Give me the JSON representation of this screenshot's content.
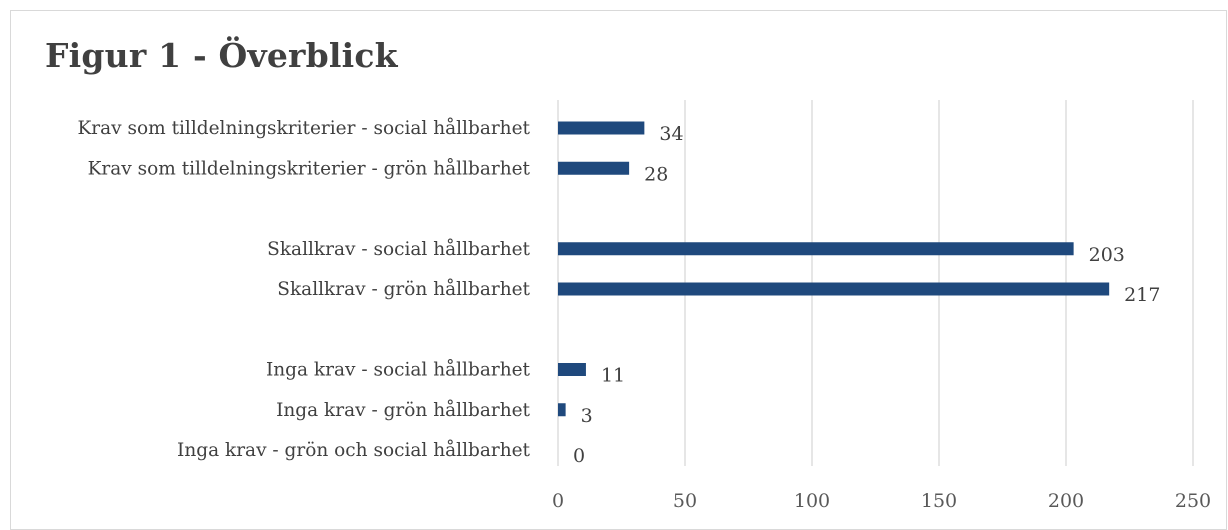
{
  "chart_data": {
    "type": "bar",
    "orientation": "horizontal",
    "title": "Figur 1 - Överblick",
    "categories": [
      "Krav som tilldelningskriterier - social hållbarhet",
      "Krav som tilldelningskriterier - grön hållbarhet",
      "",
      "Skallkrav - social hållbarhet",
      "Skallkrav - grön hållbarhet",
      "",
      "Inga krav - social hållbarhet",
      "Inga krav  - grön hållbarhet",
      "Inga krav - grön och social hållbarhet"
    ],
    "values": [
      34,
      28,
      null,
      203,
      217,
      null,
      11,
      3,
      0
    ],
    "xlim": [
      0,
      250
    ],
    "xticks": [
      "0",
      "50",
      "100",
      "150",
      "200",
      "250"
    ],
    "grid": true,
    "legend": "none",
    "data_labels": true,
    "colors": {
      "bar": "#1f497d",
      "grid": "#d9d9d9",
      "text": "#404040"
    }
  }
}
